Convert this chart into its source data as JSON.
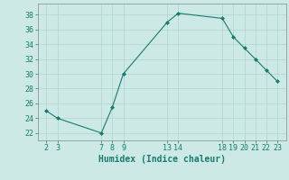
{
  "x": [
    2,
    3,
    7,
    8,
    9,
    13,
    14,
    18,
    19,
    20,
    21,
    22,
    23
  ],
  "y": [
    25,
    24,
    22,
    25.5,
    30,
    37,
    38.2,
    37.5,
    35,
    33.5,
    32,
    30.5,
    29
  ],
  "line_color": "#1a7a6e",
  "marker": "D",
  "marker_size": 2.0,
  "bg_color": "#cce9e5",
  "grid_color": "#afd4cf",
  "xlabel": "Humidex (Indice chaleur)",
  "xticks": [
    2,
    3,
    7,
    8,
    9,
    13,
    14,
    18,
    19,
    20,
    21,
    22,
    23
  ],
  "yticks": [
    22,
    24,
    26,
    28,
    30,
    32,
    34,
    36,
    38
  ],
  "xlim": [
    1.2,
    23.8
  ],
  "ylim": [
    21.0,
    39.5
  ],
  "xlabel_fontsize": 7,
  "tick_fontsize": 6,
  "tick_color": "#1a7a6e",
  "axis_color": "#888888"
}
